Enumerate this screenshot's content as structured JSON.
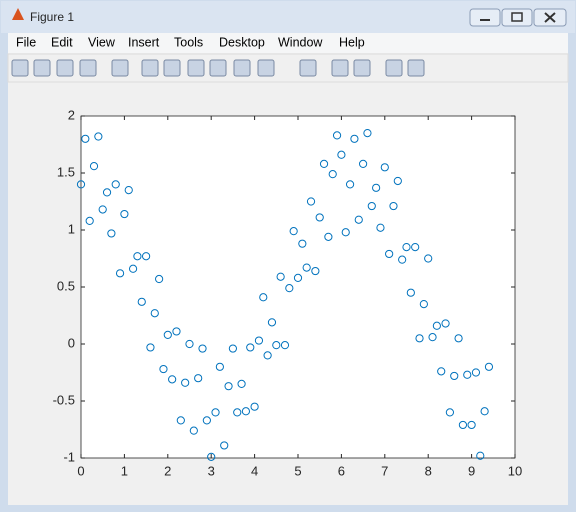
{
  "window": {
    "title": "Figure 1",
    "menu": [
      "File",
      "Edit",
      "View",
      "Insert",
      "Tools",
      "Desktop",
      "Window",
      "Help"
    ]
  },
  "chart_data": {
    "type": "scatter",
    "x": [
      0,
      0.1,
      0.2,
      0.3,
      0.4,
      0.5,
      0.6,
      0.7,
      0.8,
      0.9,
      1,
      1.1,
      1.2,
      1.3,
      1.4,
      1.5,
      1.6,
      1.7,
      1.8,
      1.9,
      2,
      2.1,
      2.2,
      2.3,
      2.4,
      2.5,
      2.6,
      2.7,
      2.8,
      2.9,
      3,
      3.1,
      3.2,
      3.3,
      3.4,
      3.5,
      3.6,
      3.7,
      3.8,
      3.9,
      4,
      4.1,
      4.2,
      4.3,
      4.4,
      4.5,
      4.6,
      4.7,
      4.8,
      4.9,
      5,
      5.1,
      5.2,
      5.3,
      5.4,
      5.5,
      5.6,
      5.7,
      5.8,
      5.9,
      6,
      6.1,
      6.2,
      6.3,
      6.4,
      6.5,
      6.6,
      6.7,
      6.8,
      6.9,
      7,
      7.1,
      7.2,
      7.3,
      7.4,
      7.5,
      7.6,
      7.7,
      7.8,
      7.9,
      8,
      8.1,
      8.2,
      8.3,
      8.4,
      8.5,
      8.6,
      8.7,
      8.8,
      8.9,
      9,
      9.1,
      9.2,
      9.3,
      9.4
    ],
    "values": [
      1.4,
      1.8,
      1.08,
      1.56,
      1.82,
      1.18,
      1.33,
      0.97,
      1.4,
      0.62,
      1.14,
      1.35,
      0.66,
      0.77,
      0.37,
      0.77,
      -0.03,
      0.27,
      0.57,
      -0.22,
      0.08,
      -0.31,
      0.11,
      -0.67,
      -0.34,
      0.0,
      -0.76,
      -0.3,
      -0.04,
      -0.67,
      -0.99,
      -0.6,
      -0.2,
      -0.89,
      -0.37,
      -0.04,
      -0.6,
      -0.35,
      -0.59,
      -0.03,
      -0.55,
      0.03,
      0.41,
      -0.1,
      0.19,
      -0.01,
      0.59,
      -0.01,
      0.49,
      0.99,
      0.58,
      0.88,
      0.67,
      1.25,
      0.64,
      1.11,
      1.58,
      0.94,
      1.49,
      1.83,
      1.66,
      0.98,
      1.4,
      1.8,
      1.09,
      1.58,
      1.85,
      1.21,
      1.37,
      1.02,
      1.55,
      0.79,
      1.21,
      1.43,
      0.74,
      0.85,
      0.45,
      0.85,
      0.05,
      0.35,
      0.75,
      0.06,
      0.16,
      -0.24,
      0.18,
      -0.6,
      -0.28,
      0.05,
      -0.71,
      -0.27,
      -0.71,
      -0.25,
      -0.98,
      -0.59,
      -0.2
    ],
    "color": "#0072BD",
    "xlim": [
      0,
      10
    ],
    "xticks": [
      0,
      1,
      2,
      3,
      4,
      5,
      6,
      7,
      8,
      9,
      10
    ],
    "ylim": [
      -1,
      2
    ],
    "yticks": [
      -1,
      -0.5,
      0,
      0.5,
      1,
      1.5,
      2
    ]
  }
}
